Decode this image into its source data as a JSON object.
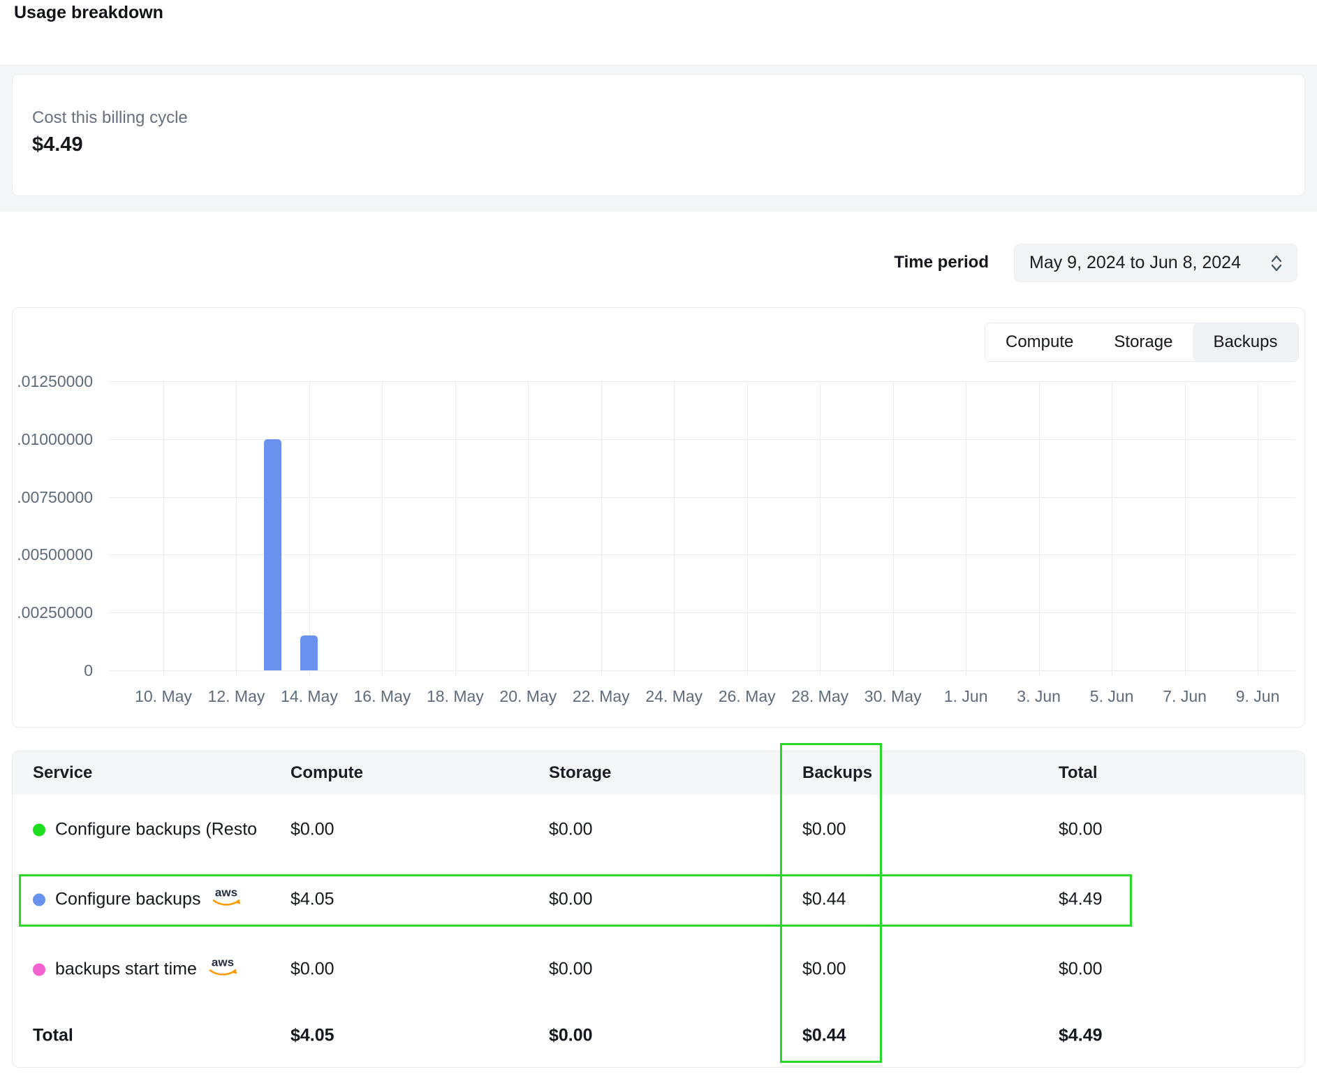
{
  "page": {
    "title": "Usage breakdown"
  },
  "billing_card": {
    "label": "Cost this billing cycle",
    "amount": "$4.49"
  },
  "time_period": {
    "label": "Time period",
    "value": "May 9, 2024 to Jun 8, 2024"
  },
  "chart_tabs": [
    {
      "label": "Compute",
      "active": false
    },
    {
      "label": "Storage",
      "active": false
    },
    {
      "label": "Backups",
      "active": true
    }
  ],
  "chart_data": {
    "type": "bar",
    "title": "",
    "xlabel": "",
    "ylabel": "",
    "ylim": [
      0,
      0.0125
    ],
    "grid": true,
    "bar_color": "#6992ef",
    "y_ticks": [
      ".01250000",
      ".01000000",
      ".00750000",
      ".00500000",
      ".00250000",
      "0"
    ],
    "y_tick_values": [
      0.0125,
      0.01,
      0.0075,
      0.005,
      0.0025,
      0
    ],
    "x_ticks": [
      "10. May",
      "12. May",
      "14. May",
      "16. May",
      "18. May",
      "20. May",
      "22. May",
      "24. May",
      "26. May",
      "28. May",
      "30. May",
      "1. Jun",
      "3. Jun",
      "5. Jun",
      "7. Jun",
      "9. Jun"
    ],
    "bars": [
      {
        "date": "13. May",
        "value": 0.01,
        "tick_index": 1.5
      },
      {
        "date": "14. May",
        "value": 0.0015,
        "tick_index": 2.0
      }
    ]
  },
  "table": {
    "columns": [
      "Service",
      "Compute",
      "Storage",
      "Backups",
      "Total"
    ],
    "rows": [
      {
        "service": "Configure backups (Resto",
        "dot_color": "#1fdd1f",
        "aws": false,
        "compute": "$0.00",
        "storage": "$0.00",
        "backups": "$0.00",
        "total": "$0.00"
      },
      {
        "service": "Configure backups",
        "dot_color": "#6992ee",
        "aws": true,
        "compute": "$4.05",
        "storage": "$0.00",
        "backups": "$0.44",
        "total": "$4.49"
      },
      {
        "service": "backups start time",
        "dot_color": "#f263cf",
        "aws": true,
        "compute": "$0.00",
        "storage": "$0.00",
        "backups": "$0.00",
        "total": "$0.00"
      }
    ],
    "total_row": {
      "label": "Total",
      "compute": "$4.05",
      "storage": "$0.00",
      "backups": "$0.44",
      "total": "$4.49"
    }
  },
  "annotations": {
    "highlight_color": "#2bd62b"
  },
  "icons": {
    "aws_text": "aws",
    "aws_orange": "#ff9900",
    "aws_navy": "#232f3e"
  }
}
